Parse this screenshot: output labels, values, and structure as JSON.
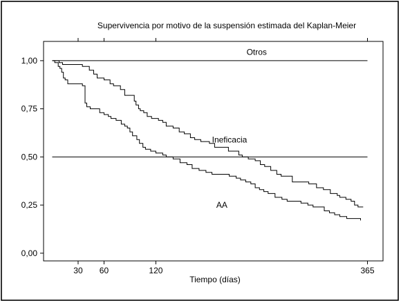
{
  "chart_data": {
    "type": "line",
    "step": true,
    "title": "Supervivencia por motivo de la suspensión estimada del Kaplan-Meier",
    "xlabel": "Tiempo (días)",
    "ylabel": "",
    "xlim": [
      -10,
      383
    ],
    "ylim": [
      -0.04,
      1.1
    ],
    "xticks": [
      30,
      60,
      120,
      365
    ],
    "yticks": [
      0.0,
      0.25,
      0.5,
      0.75,
      1.0
    ],
    "ytick_labels": [
      "0,00",
      "0,25",
      "0,50",
      "0,75",
      "1,00"
    ],
    "grid": false,
    "series": [
      {
        "name": "Otros",
        "x": [
          0,
          365
        ],
        "y": [
          1.0,
          1.0
        ]
      },
      {
        "name": "Ineficacia",
        "x": [
          0,
          8,
          12,
          35,
          43,
          48,
          52,
          60,
          67,
          71,
          79,
          84,
          92,
          95,
          97,
          100,
          102,
          106,
          110,
          115,
          123,
          128,
          132,
          140,
          147,
          153,
          160,
          165,
          172,
          182,
          188,
          204,
          216,
          220,
          227,
          235,
          241,
          246,
          253,
          260,
          265,
          278,
          289,
          297,
          306,
          314,
          322,
          330,
          333,
          340,
          346,
          350,
          354,
          360
        ],
        "y": [
          1.0,
          0.99,
          0.98,
          0.97,
          0.95,
          0.93,
          0.91,
          0.9,
          0.88,
          0.87,
          0.85,
          0.82,
          0.82,
          0.79,
          0.77,
          0.75,
          0.74,
          0.73,
          0.71,
          0.7,
          0.69,
          0.68,
          0.66,
          0.65,
          0.63,
          0.62,
          0.6,
          0.59,
          0.58,
          0.57,
          0.55,
          0.53,
          0.51,
          0.5,
          0.49,
          0.48,
          0.46,
          0.45,
          0.43,
          0.41,
          0.4,
          0.37,
          0.37,
          0.36,
          0.34,
          0.33,
          0.31,
          0.3,
          0.29,
          0.28,
          0.27,
          0.25,
          0.24,
          0.24
        ]
      },
      {
        "name": "AA",
        "x": [
          0,
          3,
          7,
          9,
          11,
          13,
          15,
          18,
          26,
          35,
          38,
          40,
          44,
          48,
          55,
          60,
          65,
          68,
          74,
          80,
          84,
          87,
          90,
          93,
          98,
          101,
          105,
          108,
          114,
          120,
          128,
          132,
          140,
          148,
          156,
          162,
          170,
          178,
          185,
          195,
          205,
          213,
          218,
          224,
          230,
          235,
          240,
          245,
          250,
          258,
          266,
          272,
          280,
          288,
          296,
          302,
          308,
          315,
          321,
          327,
          333,
          341,
          349,
          357
        ],
        "y": [
          1.0,
          0.99,
          0.97,
          0.96,
          0.94,
          0.91,
          0.9,
          0.88,
          0.88,
          0.87,
          0.78,
          0.76,
          0.75,
          0.75,
          0.73,
          0.72,
          0.71,
          0.7,
          0.69,
          0.67,
          0.66,
          0.65,
          0.63,
          0.61,
          0.59,
          0.57,
          0.55,
          0.54,
          0.53,
          0.52,
          0.51,
          0.5,
          0.49,
          0.47,
          0.46,
          0.44,
          0.43,
          0.42,
          0.41,
          0.41,
          0.4,
          0.39,
          0.38,
          0.37,
          0.36,
          0.34,
          0.33,
          0.32,
          0.31,
          0.29,
          0.28,
          0.27,
          0.27,
          0.26,
          0.25,
          0.24,
          0.24,
          0.22,
          0.21,
          0.2,
          0.19,
          0.18,
          0.18,
          0.17
        ]
      },
      {
        "name": "",
        "x": [
          0,
          365
        ],
        "y": [
          0.5,
          0.5
        ]
      }
    ],
    "series_labels": [
      {
        "text": "Otros",
        "x": 225,
        "y": 1.045
      },
      {
        "text": "Ineficacia",
        "x": 185,
        "y": 0.59
      },
      {
        "text": "AA",
        "x": 190,
        "y": 0.25
      }
    ]
  }
}
